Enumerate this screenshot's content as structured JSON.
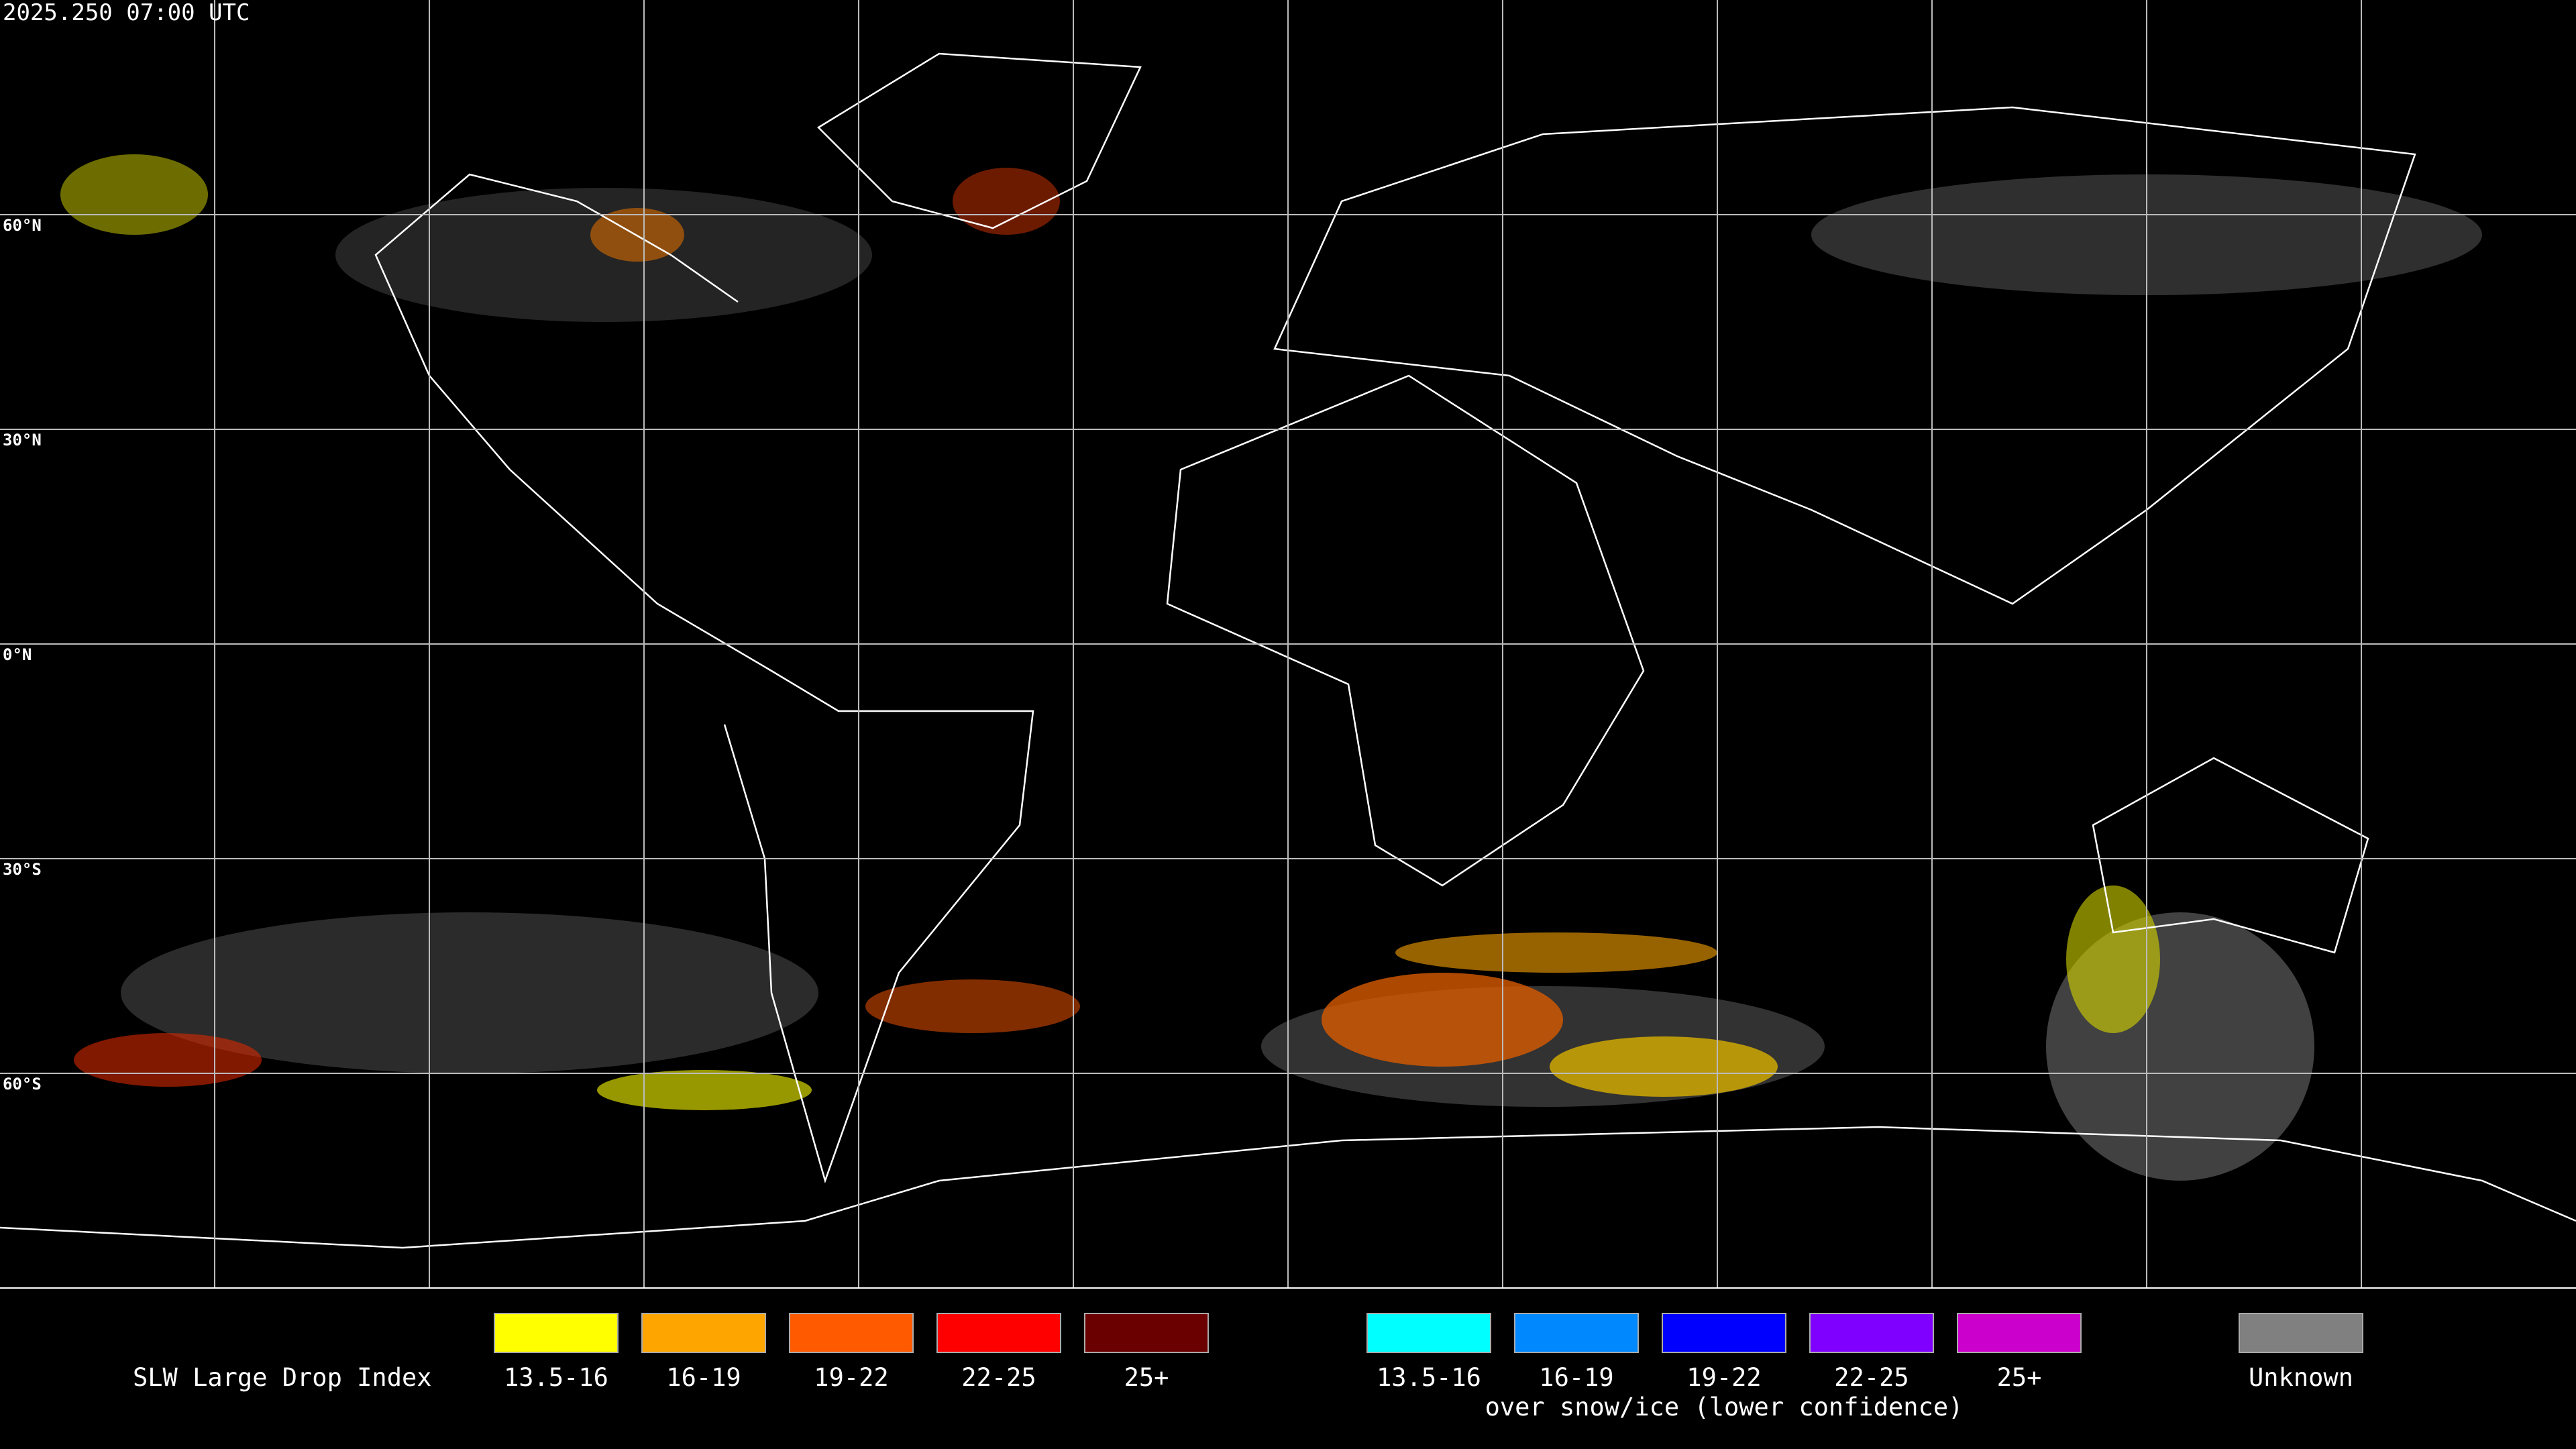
{
  "header": {
    "timestamp": "2025.250 07:00 UTC"
  },
  "map": {
    "latitude_labels": [
      "60°N",
      "30°N",
      "0°N",
      "30°S",
      "60°S"
    ]
  },
  "legend": {
    "title": "SLW Large Drop Index",
    "groups": [
      {
        "items": [
          {
            "label": "13.5-16",
            "color": "#ffff00"
          },
          {
            "label": "16-19",
            "color": "#ffa500"
          },
          {
            "label": "19-22",
            "color": "#ff5a00"
          },
          {
            "label": "22-25",
            "color": "#ff0000"
          },
          {
            "label": "25+",
            "color": "#6b0000"
          }
        ]
      },
      {
        "items": [
          {
            "label": "13.5-16",
            "color": "#00ffff"
          },
          {
            "label": "16-19",
            "color": "#0088ff"
          },
          {
            "label": "19-22",
            "color": "#0000ff"
          },
          {
            "label": "22-25",
            "color": "#8000ff"
          },
          {
            "label": "25+",
            "color": "#cc00cc"
          }
        ],
        "caption": "over snow/ice (lower confidence)"
      },
      {
        "items": [
          {
            "label": "Unknown",
            "color": "#808080"
          }
        ]
      }
    ]
  }
}
